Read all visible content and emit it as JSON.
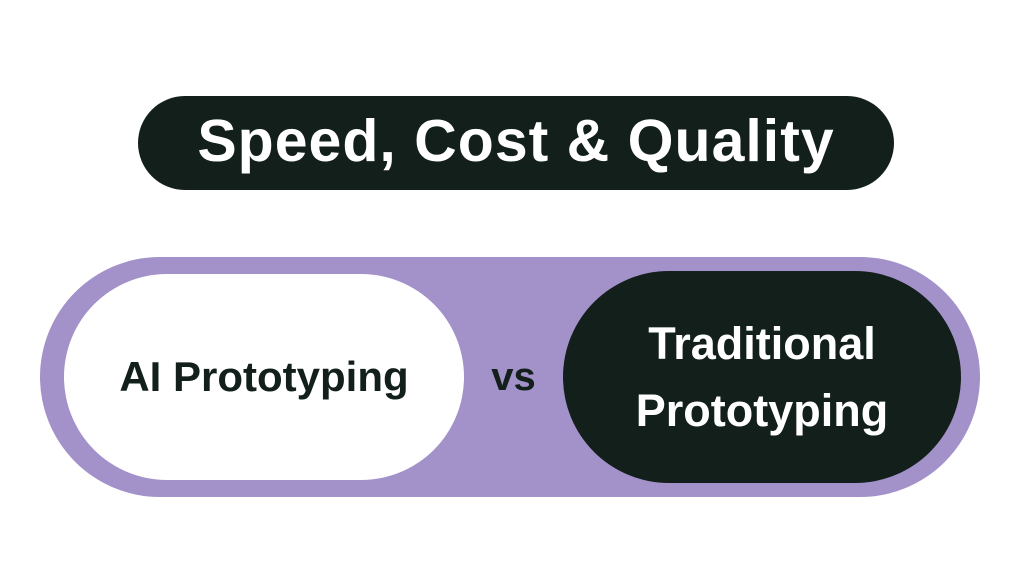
{
  "title": {
    "text": "Speed, Cost & Quality"
  },
  "comparison": {
    "left_label": "AI Prototyping",
    "vs_label": "vs",
    "right_label_line1": "Traditional",
    "right_label_line2": "Prototyping"
  },
  "colors": {
    "dark": "#121f1a",
    "purple": "#a391c9",
    "white": "#ffffff",
    "background": "#ffffff"
  }
}
